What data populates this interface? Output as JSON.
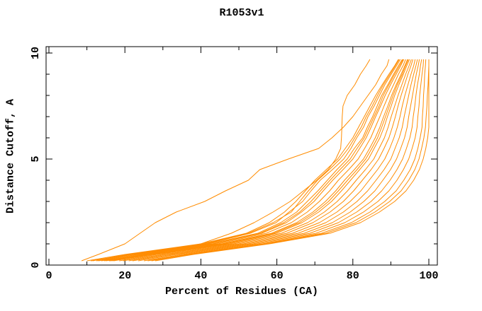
{
  "chart_data": {
    "type": "line",
    "title": "R1053v1",
    "xlabel": "Percent of Residues (CA)",
    "ylabel": "Distance Cutoff, A",
    "xlim": [
      0,
      102.2
    ],
    "ylim": [
      0,
      10.3
    ],
    "grid": false,
    "legend": "none",
    "colors": {
      "line": "#ff8c00",
      "axis": "#000000",
      "background": "#ffffff"
    },
    "xticks": {
      "major": [
        0,
        20,
        40,
        60,
        80,
        100
      ],
      "labels": [
        "0",
        "20",
        "40",
        "60",
        "80",
        "100"
      ],
      "minor": [
        10,
        30,
        50,
        70,
        90
      ]
    },
    "yticks": {
      "major": [
        0,
        5,
        10
      ],
      "labels": [
        "0",
        "5",
        "10"
      ],
      "minor": [
        1,
        2,
        3,
        4,
        6,
        7,
        8,
        9
      ]
    },
    "cutoffs": [
      0.2,
      0.5,
      1,
      1.5,
      2,
      2.5,
      3,
      3.5,
      4,
      4.5,
      5,
      5.5,
      6,
      6.5,
      7,
      7.5,
      8,
      8.5,
      9,
      9.4,
      9.7
    ],
    "series_percents": [
      [
        8.6,
        13,
        20,
        24,
        28,
        33.5,
        41,
        46.5,
        52.5,
        55.5,
        63,
        71,
        74.5,
        77.5,
        80,
        82,
        84,
        86,
        87.5,
        89,
        89.5
      ],
      [
        16,
        26,
        40,
        48,
        54,
        59,
        63.5,
        67,
        70.5,
        73.5,
        75.5,
        76.8,
        77,
        77.1,
        77.2,
        77.4,
        78.5,
        80.5,
        82,
        83.5,
        84.5
      ],
      [
        10,
        20,
        40,
        52,
        58,
        62,
        65,
        67.5,
        70,
        73,
        76,
        78,
        80,
        81.5,
        83,
        84.5,
        86,
        87.7,
        89.5,
        91,
        92
      ],
      [
        11,
        21.5,
        41.5,
        53,
        59.8,
        63.2,
        66.8,
        69,
        71.4,
        74.6,
        77.6,
        79.5,
        81,
        82.8,
        84,
        85.6,
        87,
        88.4,
        90.1,
        91.5,
        92.5
      ],
      [
        12.5,
        22,
        42,
        55,
        61,
        65.2,
        68,
        70.8,
        73.3,
        75.8,
        78.5,
        80.4,
        82.6,
        83.8,
        85.2,
        86.4,
        87.6,
        89.2,
        90.7,
        92,
        93
      ],
      [
        13,
        23.5,
        43.5,
        56,
        62.5,
        66.5,
        69.8,
        72.2,
        74.7,
        77.4,
        80,
        81.8,
        83.5,
        84.8,
        86,
        87.3,
        88.5,
        89.9,
        91.4,
        92.6,
        93.4
      ],
      [
        14.5,
        24.5,
        44.5,
        57.2,
        63.8,
        68,
        71.2,
        73.9,
        76.2,
        78.9,
        81.4,
        83.1,
        84.7,
        85.9,
        87.1,
        88.2,
        89.4,
        90.7,
        92,
        93.2,
        93.9
      ],
      [
        15,
        25.5,
        45.5,
        58.6,
        65.2,
        69.5,
        72.8,
        75.5,
        77.8,
        80.4,
        82.8,
        84.4,
        85.9,
        87.1,
        88.1,
        89.2,
        90.2,
        91.4,
        92.7,
        93.7,
        94.4
      ],
      [
        16.5,
        26.5,
        46.5,
        59.9,
        66.6,
        71,
        74.4,
        77,
        79.4,
        81.8,
        84.1,
        85.6,
        87.1,
        88.2,
        89.1,
        90.1,
        91,
        92.1,
        93.3,
        94.2,
        94.9
      ],
      [
        17,
        27.5,
        47.5,
        61.2,
        68.1,
        72.5,
        75.9,
        78.6,
        80.9,
        83.3,
        85.5,
        86.9,
        88.3,
        89.3,
        90.1,
        91,
        91.9,
        92.9,
        93.9,
        94.8,
        95.4
      ],
      [
        18.5,
        28.5,
        48.6,
        62.6,
        69.5,
        74,
        77.5,
        80.2,
        82.5,
        84.8,
        86.8,
        88.2,
        89.5,
        90.4,
        91.2,
        91.9,
        92.7,
        93.6,
        94.5,
        95.3,
        95.8
      ],
      [
        19.5,
        30,
        49.9,
        64.1,
        71.2,
        75.8,
        79.3,
        82.1,
        84.3,
        86.5,
        88.4,
        89.7,
        90.8,
        91.7,
        92.4,
        93,
        93.7,
        94.5,
        95.3,
        96,
        96.4
      ],
      [
        21,
        31,
        51.2,
        65.6,
        72.9,
        77.5,
        81.1,
        83.9,
        86.1,
        88.2,
        90,
        91.1,
        92.2,
        93,
        93.5,
        94.1,
        94.7,
        95.3,
        96,
        96.6,
        97
      ],
      [
        22,
        32.5,
        52.4,
        67.2,
        74.6,
        79.3,
        82.9,
        85.8,
        87.9,
        89.9,
        91.5,
        92.6,
        93.6,
        94.3,
        94.7,
        95.2,
        95.7,
        96.2,
        96.7,
        97.2,
        97.5
      ],
      [
        23.5,
        33.5,
        53.7,
        68.7,
        76.2,
        81,
        84.8,
        87.6,
        89.8,
        91.6,
        93.1,
        94.1,
        95,
        95.6,
        95.9,
        96.3,
        96.6,
        97,
        97.5,
        97.8,
        98.1
      ],
      [
        25,
        35,
        54.9,
        70.3,
        77.9,
        82.8,
        86.6,
        89.5,
        91.6,
        93.3,
        94.7,
        95.6,
        96.4,
        96.9,
        97.1,
        97.4,
        97.6,
        97.9,
        98.2,
        98.5,
        98.6
      ],
      [
        26,
        36.2,
        56.2,
        71.8,
        79.6,
        84.5,
        88.4,
        91.4,
        93.4,
        95.1,
        96.3,
        97.1,
        97.7,
        98.2,
        98.3,
        98.5,
        98.6,
        98.8,
        98.9,
        99.1,
        99.2
      ],
      [
        27,
        37.1,
        57.1,
        72.9,
        80.8,
        85.8,
        89.7,
        92.7,
        94.7,
        96.3,
        97.4,
        98.1,
        98.7,
        99.1,
        99.3,
        99.5,
        99.6,
        99.8,
        99.9,
        100,
        100
      ],
      [
        28,
        38,
        58,
        74,
        82,
        87,
        91,
        94,
        96,
        97.5,
        98.5,
        99.2,
        99.7,
        100,
        100,
        100,
        100,
        100,
        100,
        100,
        100
      ],
      [
        11.5,
        20.8,
        40.8,
        52.5,
        59,
        63.8,
        66,
        68.3,
        70.7,
        73.8,
        76.6,
        78.8,
        80.5,
        82.2,
        83.5,
        85.1,
        86.5,
        88,
        89.8,
        91.2,
        92.2
      ],
      [
        13.8,
        23,
        43,
        55.6,
        61.8,
        66,
        69,
        71.5,
        74,
        76.6,
        79.3,
        81.1,
        83,
        84.3,
        85.6,
        86.9,
        88,
        89.5,
        91,
        92.3,
        93.2
      ],
      [
        15.8,
        26,
        46,
        59.2,
        65.9,
        70.2,
        73.6,
        76.2,
        78.6,
        81.1,
        83.4,
        85,
        86.5,
        87.6,
        88.6,
        89.6,
        90.6,
        91.7,
        93,
        93.9,
        94.6
      ]
    ]
  }
}
